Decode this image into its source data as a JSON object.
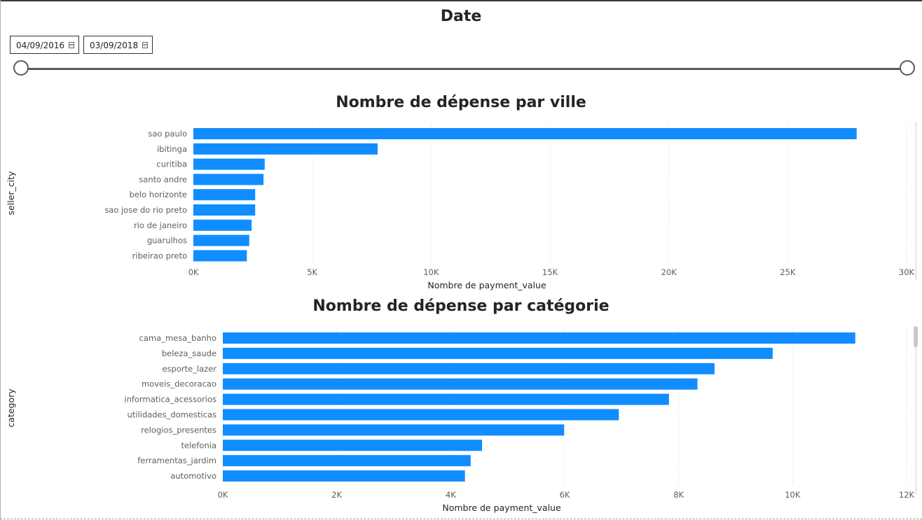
{
  "slicer": {
    "title": "Date",
    "start_date": "04/09/2016",
    "end_date": "03/09/2018",
    "icons": [
      "calendar-icon",
      "calendar-icon"
    ]
  },
  "chart_data": [
    {
      "type": "bar",
      "orientation": "horizontal",
      "title": "Nombre de dépense par ville",
      "ylabel": "seller_city",
      "xlabel": "Nombre de payment_value",
      "categories": [
        "sao paulo",
        "ibitinga",
        "curitiba",
        "santo andre",
        "belo horizonte",
        "sao jose do rio preto",
        "rio de janeiro",
        "guarulhos",
        "ribeirao preto"
      ],
      "values": [
        27900,
        7750,
        3000,
        2950,
        2600,
        2600,
        2450,
        2350,
        2250
      ],
      "xlim": [
        0,
        30000
      ],
      "ticks": [
        0,
        5000,
        10000,
        15000,
        20000,
        25000,
        30000
      ],
      "tick_labels": [
        "0K",
        "5K",
        "10K",
        "15K",
        "20K",
        "25K",
        "30K"
      ],
      "bar_color": "#118DFF",
      "grid": "vertical dotted"
    },
    {
      "type": "bar",
      "orientation": "horizontal",
      "title": "Nombre de dépense par catégorie",
      "ylabel": "category",
      "xlabel": "Nombre de payment_value",
      "categories": [
        "cama_mesa_banho",
        "beleza_saude",
        "esporte_lazer",
        "moveis_decoracao",
        "informatica_acessorios",
        "utilidades_domesticas",
        "relogios_presentes",
        "telefonia",
        "ferramentas_jardim",
        "automotivo"
      ],
      "values": [
        11100,
        9650,
        8630,
        8330,
        7830,
        6950,
        5990,
        4550,
        4350,
        4250
      ],
      "xlim": [
        0,
        12000
      ],
      "ticks": [
        0,
        2000,
        4000,
        6000,
        8000,
        10000,
        12000
      ],
      "tick_labels": [
        "0K",
        "2K",
        "4K",
        "6K",
        "8K",
        "10K",
        "12K"
      ],
      "bar_color": "#118DFF",
      "grid": "vertical dotted"
    }
  ]
}
